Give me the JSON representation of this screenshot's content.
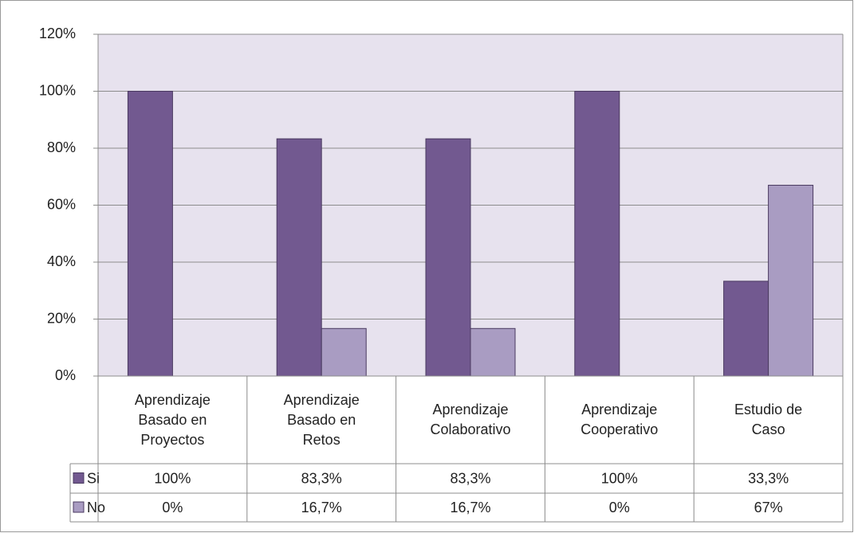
{
  "chart_data": {
    "type": "bar",
    "categories": [
      "Aprendizaje Basado en Proyectos",
      "Aprendizaje Basado en Retos",
      "Aprendizaje Colaborativo",
      "Aprendizaje Cooperativo",
      "Estudio de Caso"
    ],
    "series": [
      {
        "name": "Si",
        "color": "#725990",
        "values": [
          100,
          83.3,
          83.3,
          100,
          33.3
        ],
        "value_labels": [
          "100%",
          "83,3%",
          "83,3%",
          "100%",
          "33,3%"
        ]
      },
      {
        "name": "No",
        "color": "#a99cc2",
        "values": [
          0,
          16.7,
          16.7,
          0,
          67
        ],
        "value_labels": [
          "0%",
          "16,7%",
          "16,7%",
          "0%",
          "67%"
        ]
      }
    ],
    "ylim": [
      0,
      120
    ],
    "yticks": [
      {
        "value": 0,
        "label": "0%"
      },
      {
        "value": 20,
        "label": "20%"
      },
      {
        "value": 40,
        "label": "40%"
      },
      {
        "value": 60,
        "label": "60%"
      },
      {
        "value": 80,
        "label": "80%"
      },
      {
        "value": 100,
        "label": "100%"
      },
      {
        "value": 120,
        "label": "120%"
      }
    ],
    "grid": true
  }
}
